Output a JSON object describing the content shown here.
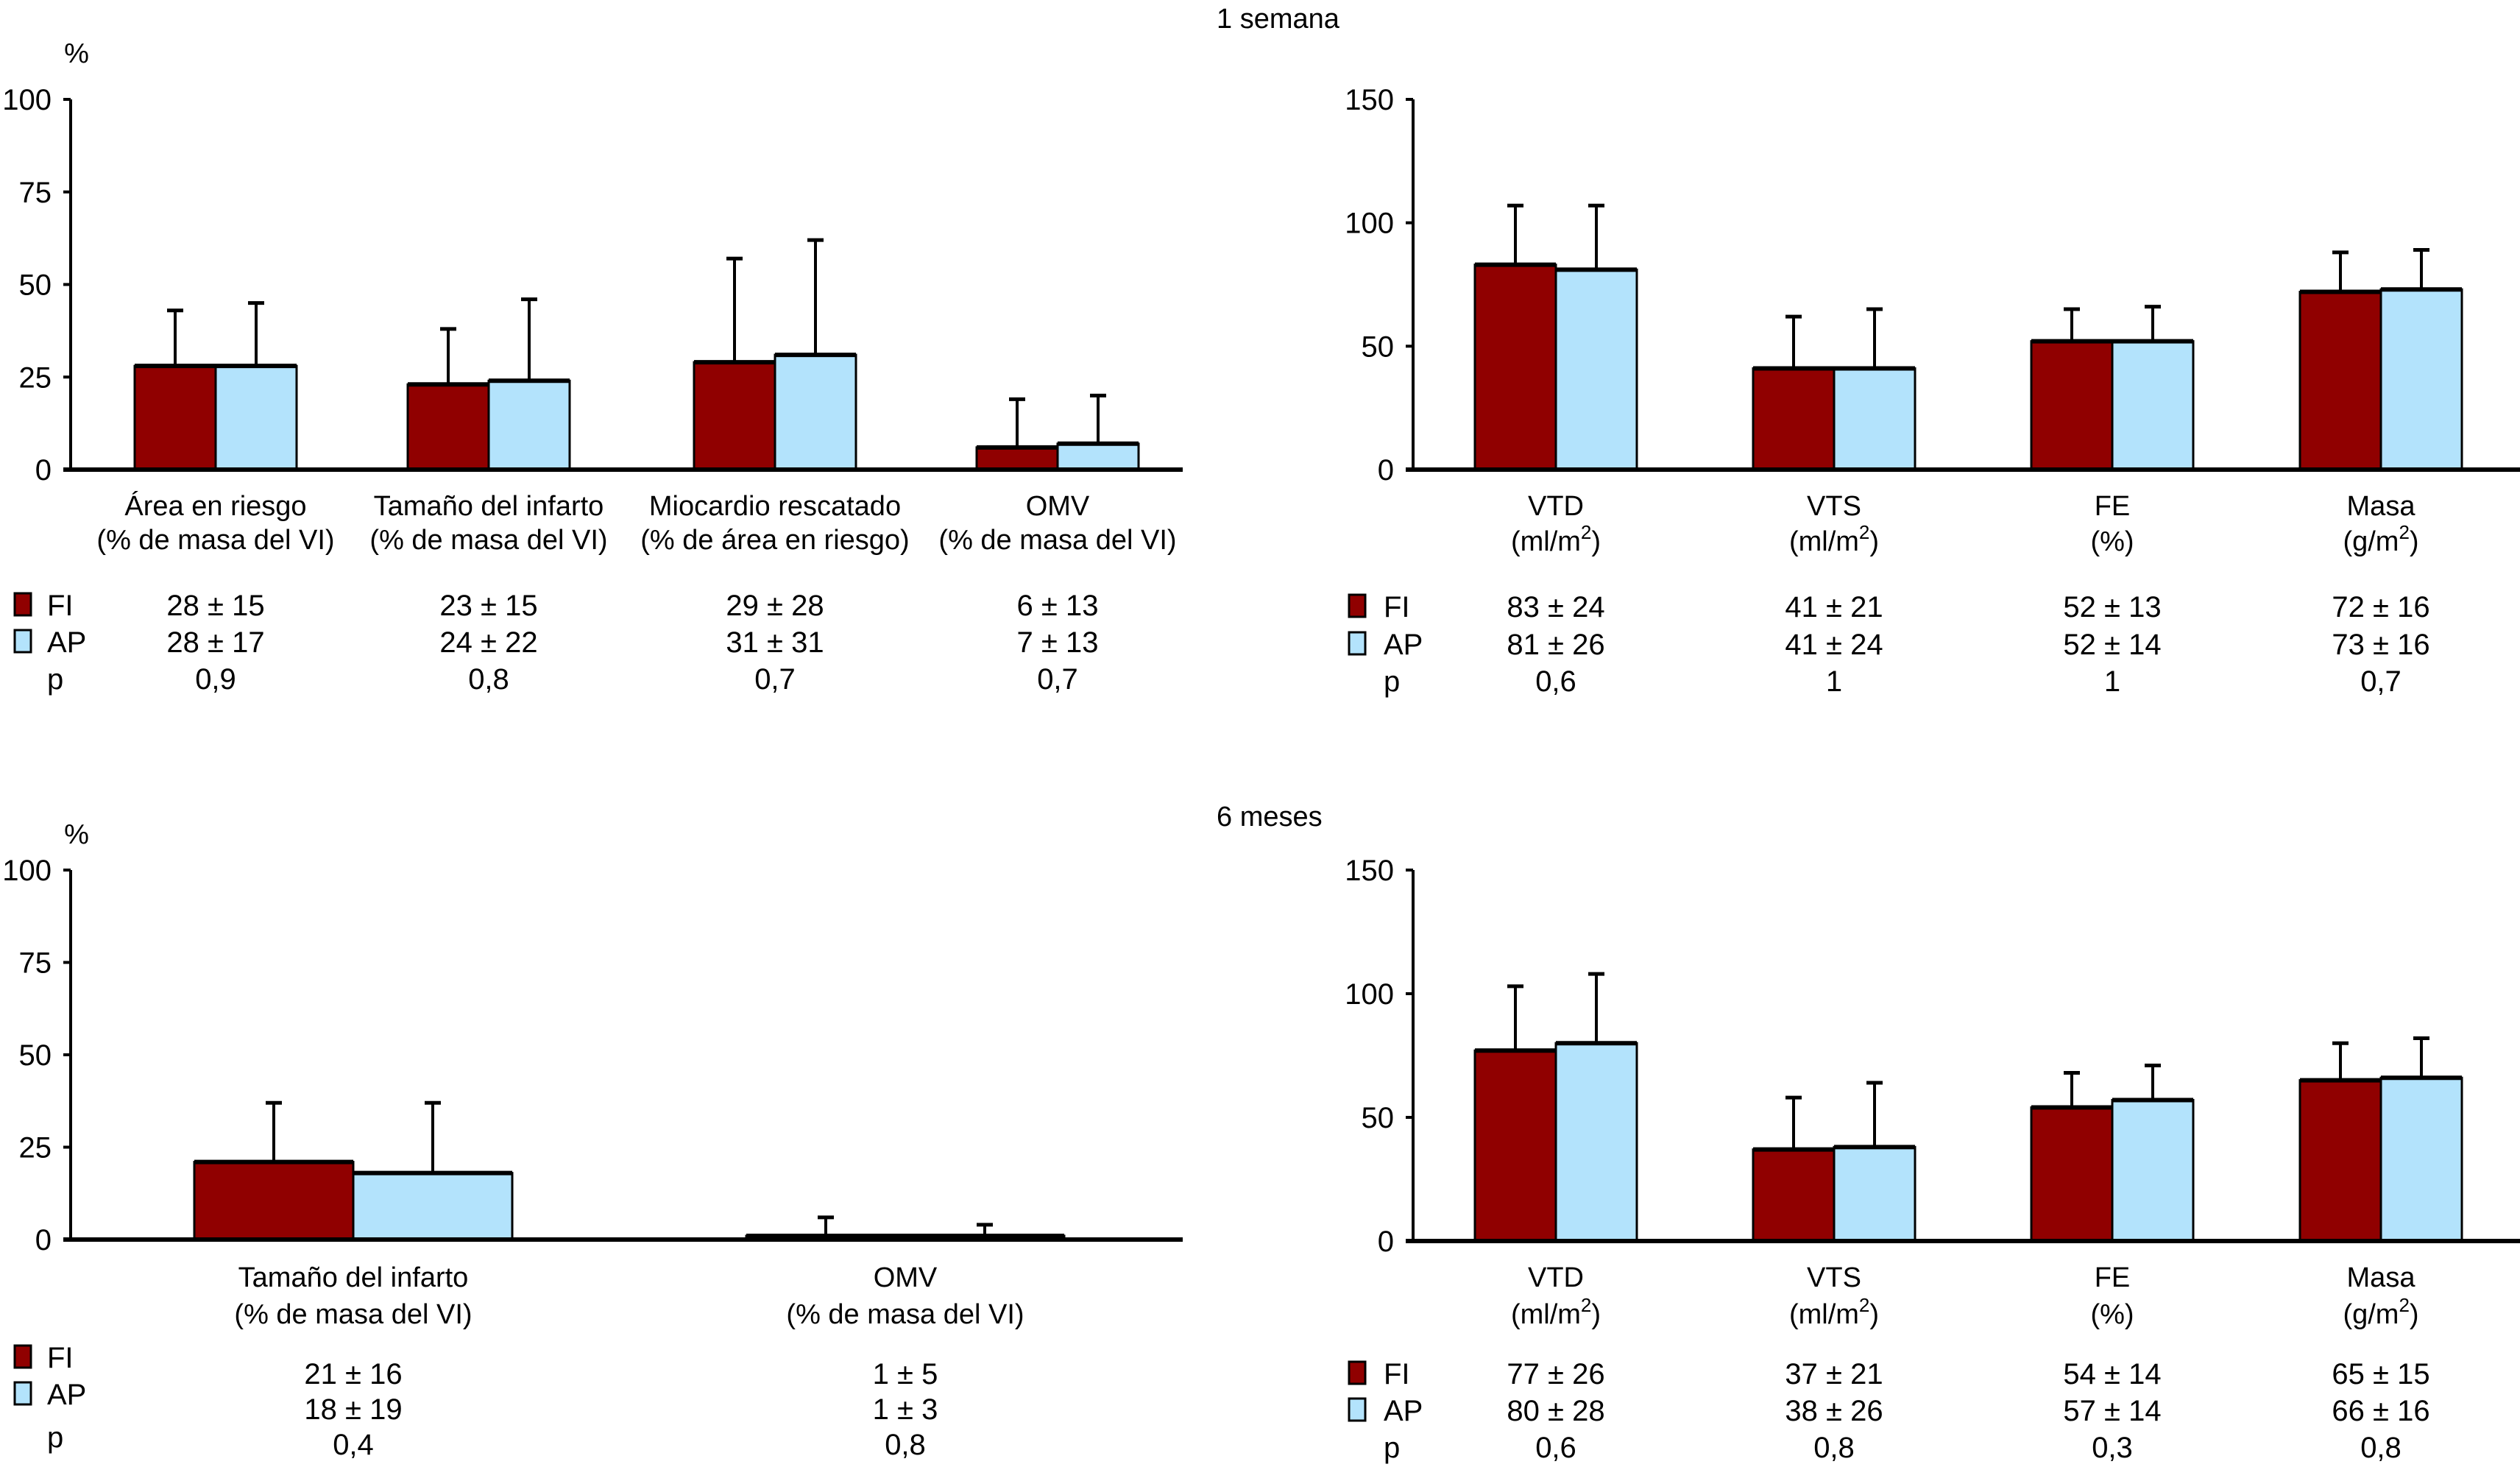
{
  "colors": {
    "FI": "#900000",
    "AP": "#B3E3FC"
  },
  "legend": {
    "fi": "FI",
    "ap": "AP",
    "p": "p"
  },
  "chart_data": [
    {
      "id": "top-left",
      "type": "bar",
      "section_title": "",
      "ylabel": "%",
      "ylim": [
        0,
        100
      ],
      "yticks": [
        "0",
        "25",
        "50",
        "75",
        "100"
      ],
      "categories": [
        {
          "line1": "Área en riesgo",
          "line2": "(% de masa del VI)"
        },
        {
          "line1": "Tamaño del infarto",
          "line2": "(% de masa del VI)"
        },
        {
          "line1": "Miocardio rescatado",
          "line2": "(% de área en riesgo)"
        },
        {
          "line1": "OMV",
          "line2": "(% de masa del VI)"
        }
      ],
      "series": [
        {
          "name": "FI",
          "values": [
            28,
            23,
            29,
            6
          ],
          "sd": [
            15,
            15,
            28,
            13
          ]
        },
        {
          "name": "AP",
          "values": [
            28,
            24,
            31,
            7
          ],
          "sd": [
            17,
            22,
            31,
            13
          ]
        }
      ],
      "table": {
        "FI": [
          "28 ± 15",
          "23 ± 15",
          "29 ± 28",
          "6 ± 13"
        ],
        "AP": [
          "28 ± 17",
          "24 ± 22",
          "31 ± 31",
          "7 ± 13"
        ],
        "p": [
          "0,9",
          "0,8",
          "0,7",
          "0,7"
        ]
      }
    },
    {
      "id": "top-right",
      "type": "bar",
      "section_title": "1 semana",
      "ylabel": "",
      "ylim": [
        0,
        150
      ],
      "yticks": [
        "0",
        "50",
        "100",
        "150"
      ],
      "categories": [
        {
          "line1": "VTD",
          "line2": "(ml/m",
          "sup": "2",
          "line2end": ")"
        },
        {
          "line1": "VTS",
          "line2": "(ml/m",
          "sup": "2",
          "line2end": ")"
        },
        {
          "line1": "FE",
          "line2": "(%)",
          "sup": "",
          "line2end": ""
        },
        {
          "line1": "Masa",
          "line2": "(g/m",
          "sup": "2",
          "line2end": ")"
        }
      ],
      "series": [
        {
          "name": "FI",
          "values": [
            83,
            41,
            52,
            72
          ],
          "sd": [
            24,
            21,
            13,
            16
          ]
        },
        {
          "name": "AP",
          "values": [
            81,
            41,
            52,
            73
          ],
          "sd": [
            26,
            24,
            14,
            16
          ]
        }
      ],
      "table": {
        "FI": [
          "83 ± 24",
          "41 ± 21",
          "52 ± 13",
          "72 ± 16"
        ],
        "AP": [
          "81 ± 26",
          "41 ± 24",
          "52 ± 14",
          "73 ± 16"
        ],
        "p": [
          "0,6",
          "1",
          "1",
          "0,7"
        ]
      }
    },
    {
      "id": "bottom-left",
      "type": "bar",
      "section_title": "",
      "ylabel": "%",
      "ylim": [
        0,
        100
      ],
      "yticks": [
        "0",
        "25",
        "50",
        "75",
        "100"
      ],
      "categories": [
        {
          "line1": "Tamaño del infarto",
          "line2": "(% de masa del VI)"
        },
        {
          "line1": "OMV",
          "line2": "(% de masa del VI)"
        }
      ],
      "series": [
        {
          "name": "FI",
          "values": [
            21,
            1
          ],
          "sd": [
            16,
            5
          ]
        },
        {
          "name": "AP",
          "values": [
            18,
            1
          ],
          "sd": [
            19,
            3
          ]
        }
      ],
      "table": {
        "FI": [
          "21 ± 16",
          "1 ± 5"
        ],
        "AP": [
          "18 ± 19",
          "1 ± 3"
        ],
        "p": [
          "0,4",
          "0,8"
        ]
      }
    },
    {
      "id": "bottom-right",
      "type": "bar",
      "section_title": "6 meses",
      "ylabel": "",
      "ylim": [
        0,
        150
      ],
      "yticks": [
        "0",
        "50",
        "100",
        "150"
      ],
      "categories": [
        {
          "line1": "VTD",
          "line2": "(ml/m",
          "sup": "2",
          "line2end": ")"
        },
        {
          "line1": "VTS",
          "line2": "(ml/m",
          "sup": "2",
          "line2end": ")"
        },
        {
          "line1": "FE",
          "line2": "(%)",
          "sup": "",
          "line2end": ""
        },
        {
          "line1": "Masa",
          "line2": "(g/m",
          "sup": "2",
          "line2end": ")"
        }
      ],
      "series": [
        {
          "name": "FI",
          "values": [
            77,
            37,
            54,
            65
          ],
          "sd": [
            26,
            21,
            14,
            15
          ]
        },
        {
          "name": "AP",
          "values": [
            80,
            38,
            57,
            66
          ],
          "sd": [
            28,
            26,
            14,
            16
          ]
        }
      ],
      "table": {
        "FI": [
          "77 ± 26",
          "37 ± 21",
          "54 ± 14",
          "65 ± 15"
        ],
        "AP": [
          "80 ± 28",
          "38 ± 26",
          "57 ± 14",
          "66 ± 16"
        ],
        "p": [
          "0,6",
          "0,8",
          "0,3",
          "0,8"
        ]
      }
    }
  ]
}
